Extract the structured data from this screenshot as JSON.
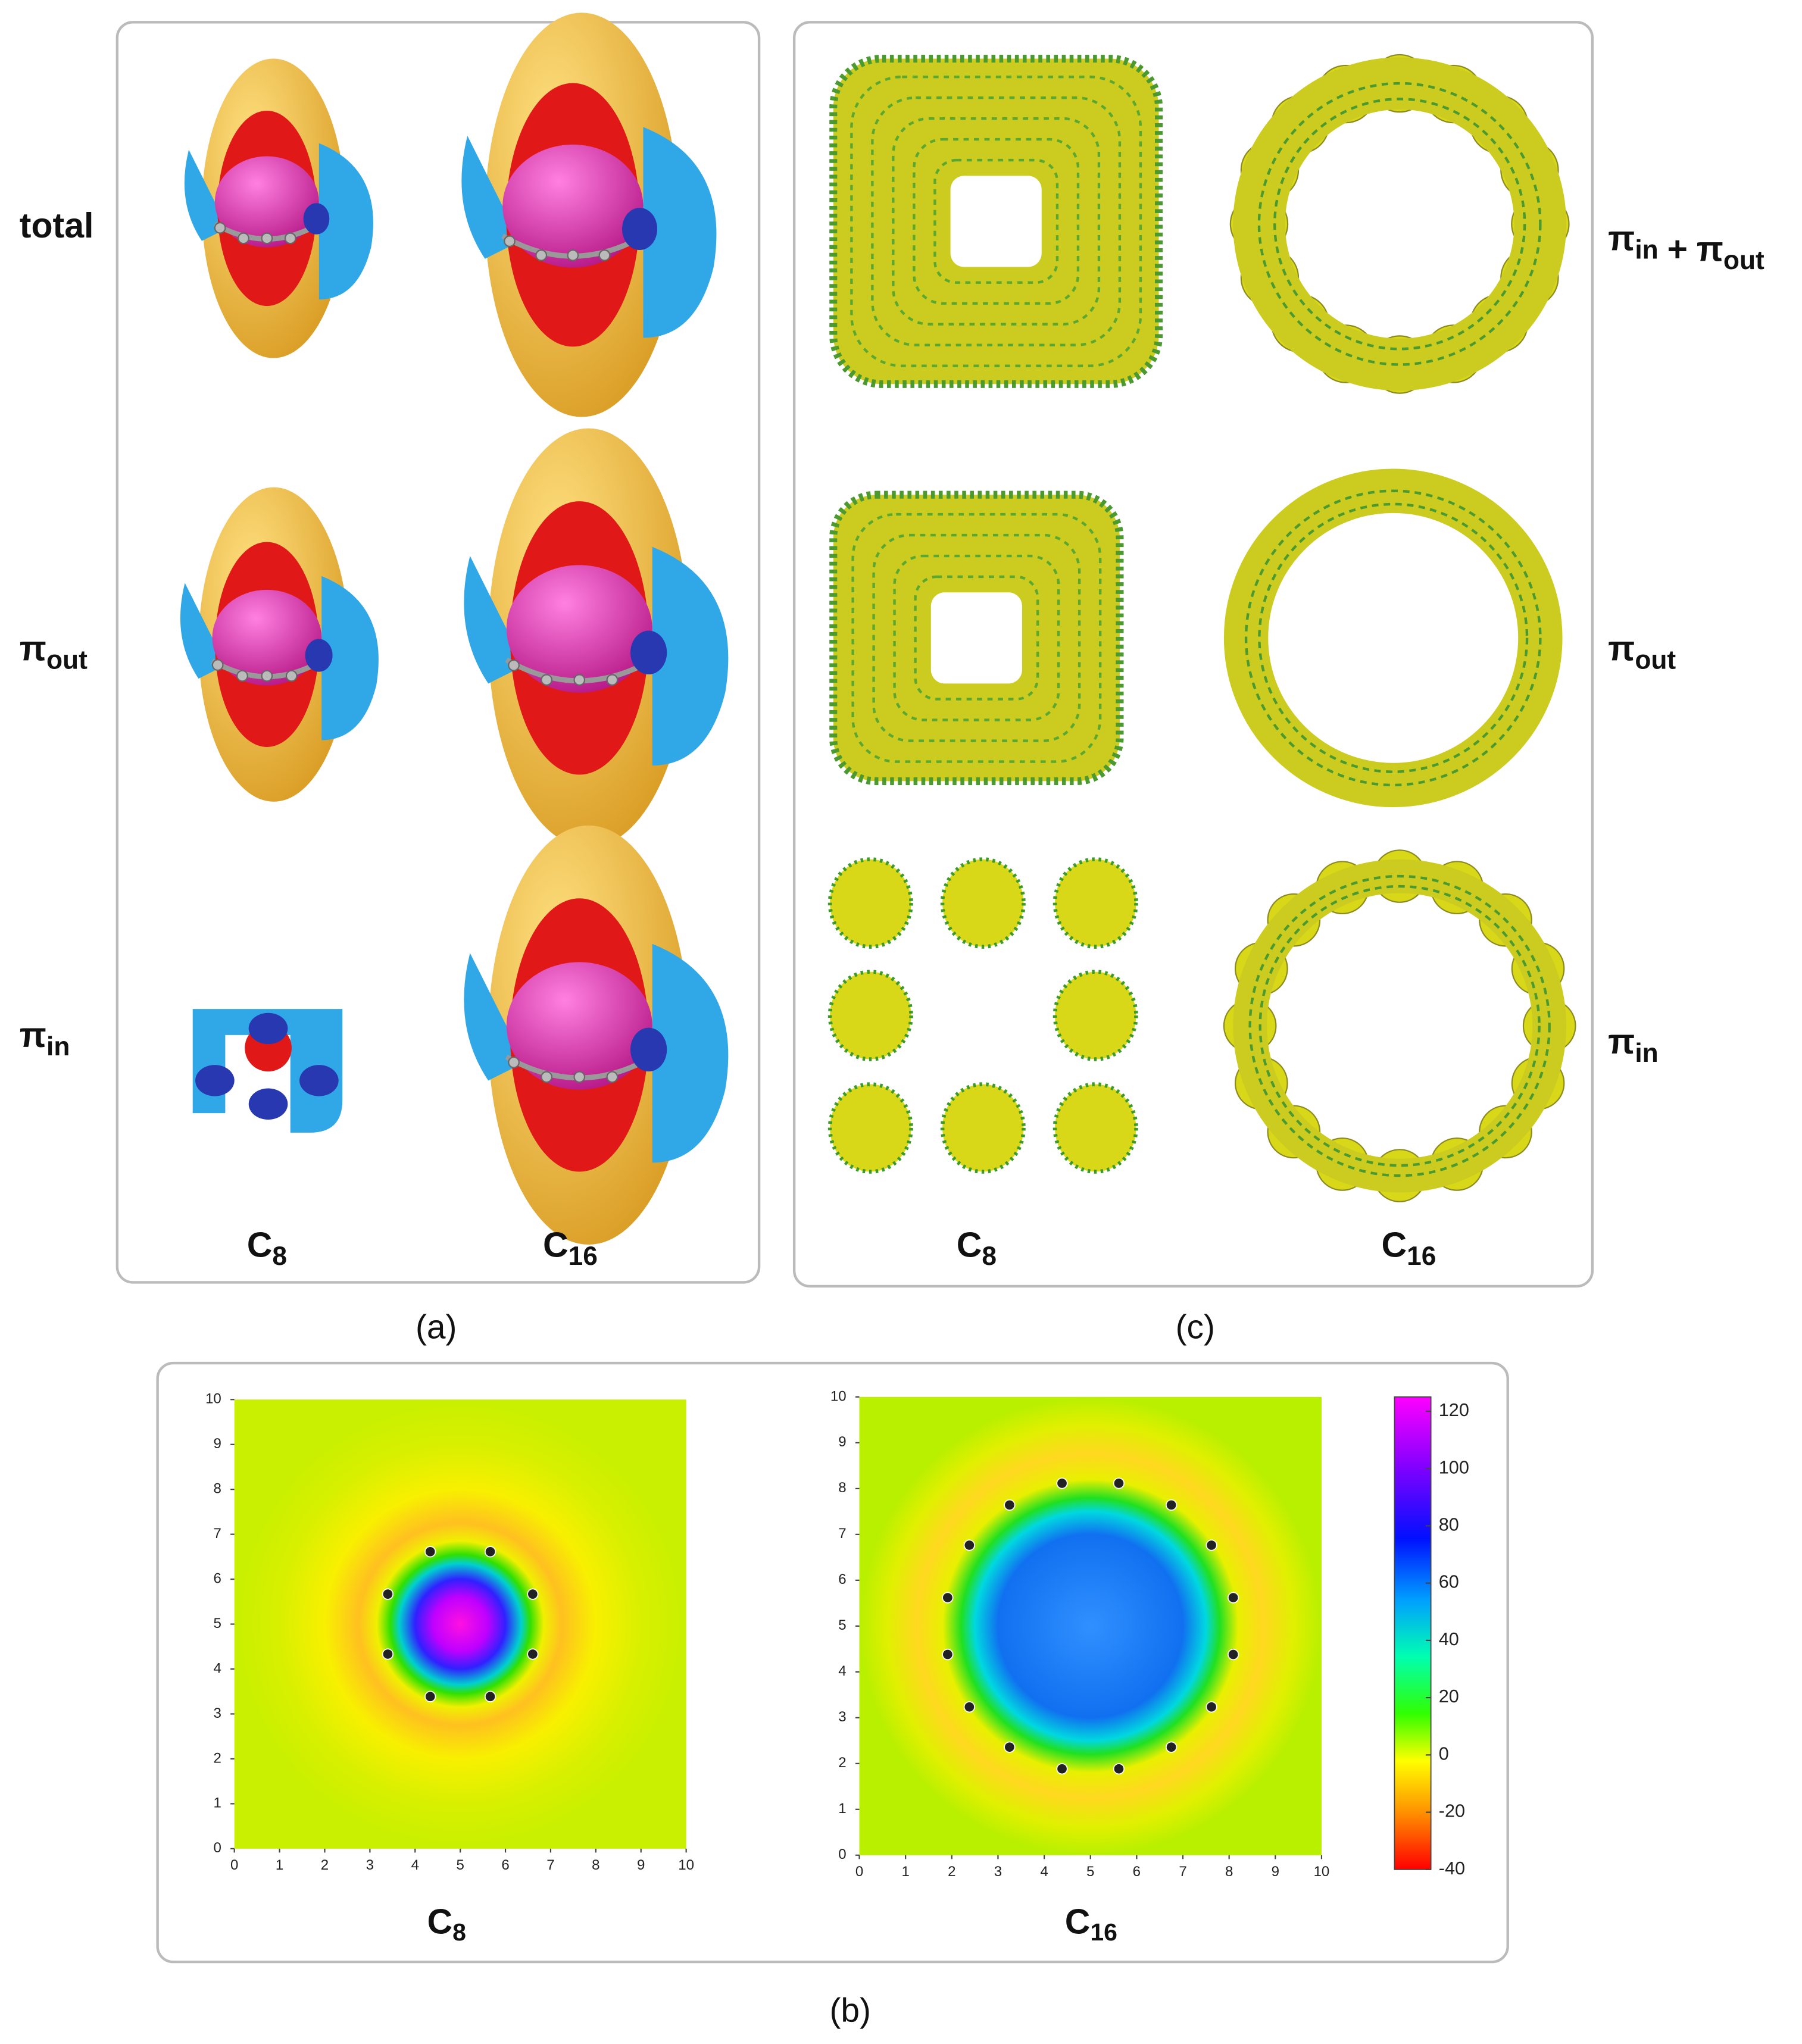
{
  "panel_a": {
    "row_labels": [
      [
        {
          "base": "total"
        }
      ],
      [
        {
          "base": "π",
          "sub": "out"
        }
      ],
      [
        {
          "base": "π",
          "sub": "in"
        }
      ]
    ],
    "column_labels": [
      [
        {
          "base": "C",
          "sub": "8"
        }
      ],
      [
        {
          "base": "C",
          "sub": "16"
        }
      ]
    ],
    "caption": "(a)"
  },
  "panel_c": {
    "row_labels": [
      [
        {
          "base": "π",
          "sub": "in"
        },
        {
          "base": "+"
        },
        {
          "base": "π",
          "sub": "out"
        }
      ],
      [
        {
          "base": "π",
          "sub": "out"
        }
      ],
      [
        {
          "base": "π",
          "sub": "in"
        }
      ]
    ],
    "column_labels": [
      [
        {
          "base": "C",
          "sub": "8"
        }
      ],
      [
        {
          "base": "C",
          "sub": "16"
        }
      ]
    ],
    "caption": "(c)"
  },
  "panel_b": {
    "caption": "(b)",
    "plots": [
      {
        "label": [
          {
            "base": "C",
            "sub": "8"
          }
        ],
        "xlim": [
          0,
          10
        ],
        "ylim": [
          0,
          10
        ],
        "xticks": [
          0,
          1,
          2,
          3,
          4,
          5,
          6,
          7,
          8,
          9,
          10
        ],
        "yticks": [
          0,
          1,
          2,
          3,
          4,
          5,
          6,
          7,
          8,
          9,
          10
        ]
      },
      {
        "label": [
          {
            "base": "C",
            "sub": "16"
          }
        ],
        "xlim": [
          0,
          10
        ],
        "ylim": [
          0,
          10
        ],
        "xticks": [
          0,
          1,
          2,
          3,
          4,
          5,
          6,
          7,
          8,
          9,
          10
        ],
        "yticks": [
          0,
          1,
          2,
          3,
          4,
          5,
          6,
          7,
          8,
          9,
          10
        ]
      }
    ],
    "colorbar": {
      "lim": [
        -40,
        125
      ],
      "ticks": [
        -40,
        -20,
        0,
        20,
        40,
        60,
        80,
        100,
        120
      ]
    }
  }
}
